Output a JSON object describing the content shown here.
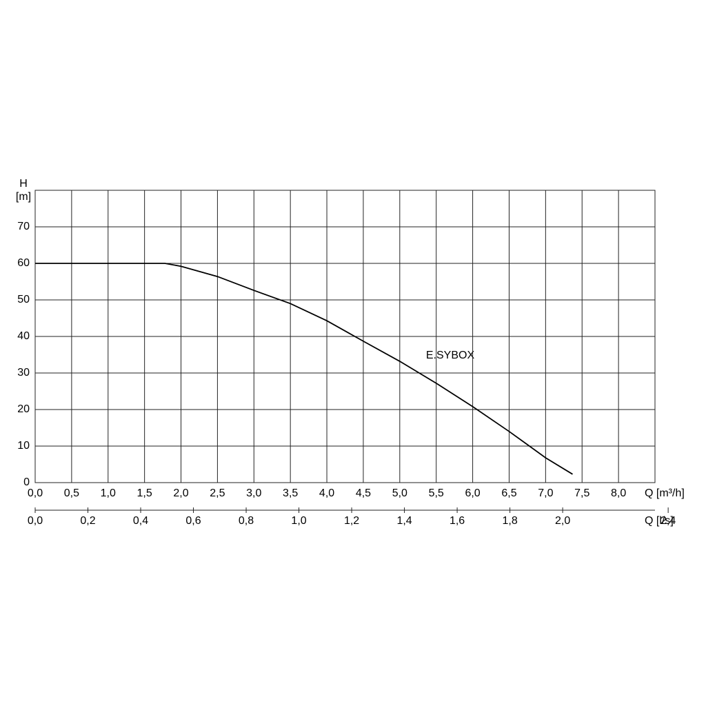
{
  "chart_data": {
    "type": "line",
    "annotation": "E.SYBOX",
    "y_label": "H",
    "y_unit": "[m]",
    "x_label": "Q [m³/h]",
    "x2_label": "Q [l/s]",
    "x": [
      0,
      1.78,
      2.0,
      2.5,
      3.0,
      3.5,
      4.0,
      4.5,
      5.0,
      5.5,
      6.0,
      6.5,
      7.0,
      7.37
    ],
    "values": [
      60,
      60,
      59.2,
      56.4,
      52.6,
      49,
      44.3,
      38.7,
      33.2,
      27.2,
      20.8,
      14,
      6.8,
      2.3
    ],
    "color": "#000000",
    "xlim": [
      0,
      8.5
    ],
    "ylim": [
      0,
      80
    ],
    "x2lim": [
      0,
      2.35
    ],
    "xticks": [
      {
        "value": 0,
        "label": "0,0"
      },
      {
        "value": 0.5,
        "label": "0,5"
      },
      {
        "value": 1,
        "label": "1,0"
      },
      {
        "value": 1.5,
        "label": "1,5"
      },
      {
        "value": 2,
        "label": "2,0"
      },
      {
        "value": 2.5,
        "label": "2,5"
      },
      {
        "value": 3,
        "label": "3,0"
      },
      {
        "value": 3.5,
        "label": "3,5"
      },
      {
        "value": 4,
        "label": "4,0"
      },
      {
        "value": 4.5,
        "label": "4,5"
      },
      {
        "value": 5,
        "label": "5,0"
      },
      {
        "value": 5.5,
        "label": "5,5"
      },
      {
        "value": 6,
        "label": "6,0"
      },
      {
        "value": 6.5,
        "label": "6,5"
      },
      {
        "value": 7,
        "label": "7,0"
      },
      {
        "value": 7.5,
        "label": "7,5"
      },
      {
        "value": 8,
        "label": "8,0"
      }
    ],
    "yticks": [
      0,
      10,
      20,
      30,
      40,
      50,
      60,
      70
    ],
    "x2ticks": [
      {
        "value": 0,
        "label": "0,0"
      },
      {
        "value": 0.2,
        "label": "0,2"
      },
      {
        "value": 0.4,
        "label": "0,4"
      },
      {
        "value": 0.6,
        "label": "0,6"
      },
      {
        "value": 0.8,
        "label": "0,8"
      },
      {
        "value": 1,
        "label": "1,0"
      },
      {
        "value": 1.2,
        "label": "1,2"
      },
      {
        "value": 1.4,
        "label": "1,4"
      },
      {
        "value": 1.6,
        "label": "1,6"
      },
      {
        "value": 1.8,
        "label": "1,8"
      },
      {
        "value": 2,
        "label": "2,0"
      },
      {
        "value": 2.4,
        "label": "2,4"
      }
    ],
    "grid": true
  }
}
